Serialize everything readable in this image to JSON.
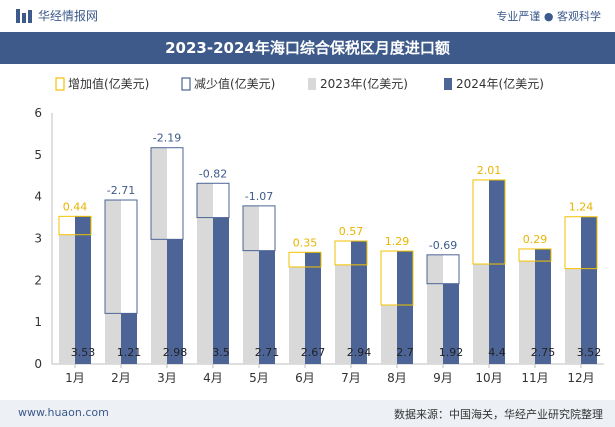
{
  "header": {
    "brand": "华经情报网",
    "tagline": "专业严谨 ● 客观科学",
    "title": "2023-2024年海口综合保税区月度进口额"
  },
  "footer": {
    "website": "www.huaon.com",
    "source": "数据来源：中国海关，华经产业研究院整理"
  },
  "colors": {
    "series_2023": "#d9d9d9",
    "series_2024": "#4d6596",
    "increase": "#f2c200",
    "decrease": "#4d6596",
    "label_increase": "#e8b400",
    "label_decrease": "#3e5a8a"
  },
  "chart_data": {
    "type": "bar",
    "title": "2023-2024年海口综合保税区月度进口额",
    "categories": [
      "1月",
      "2月",
      "3月",
      "4月",
      "5月",
      "6月",
      "7月",
      "8月",
      "9月",
      "10月",
      "11月",
      "12月"
    ],
    "series": [
      {
        "name": "2023年(亿美元)",
        "values": [
          3.09,
          3.92,
          5.17,
          4.32,
          3.78,
          2.32,
          2.37,
          1.41,
          2.61,
          2.39,
          2.46,
          2.28
        ]
      },
      {
        "name": "2024年(亿美元)",
        "values": [
          3.53,
          1.21,
          2.98,
          3.5,
          2.71,
          2.67,
          2.94,
          2.7,
          1.92,
          4.4,
          2.75,
          3.52
        ]
      }
    ],
    "value_labels_2024": [
      "3.53",
      "1.21",
      "2.98",
      "3.5",
      "2.71",
      "2.67",
      "2.94",
      "2.7",
      "1.92",
      "4.4",
      "2.75",
      "3.52"
    ],
    "change_labels": [
      "0.44",
      "-2.71",
      "-2.19",
      "-0.82",
      "-1.07",
      "0.35",
      "0.57",
      "1.29",
      "-0.69",
      "2.01",
      "0.29",
      "1.24"
    ],
    "legend": [
      "增加值(亿美元)",
      "减少值(亿美元)",
      "2023年(亿美元)",
      "2024年(亿美元)"
    ],
    "legend_position": "top",
    "yticks": [
      "0",
      "1",
      "2",
      "3",
      "4",
      "5",
      "6"
    ],
    "ylim": [
      0,
      6
    ],
    "grid": false
  }
}
